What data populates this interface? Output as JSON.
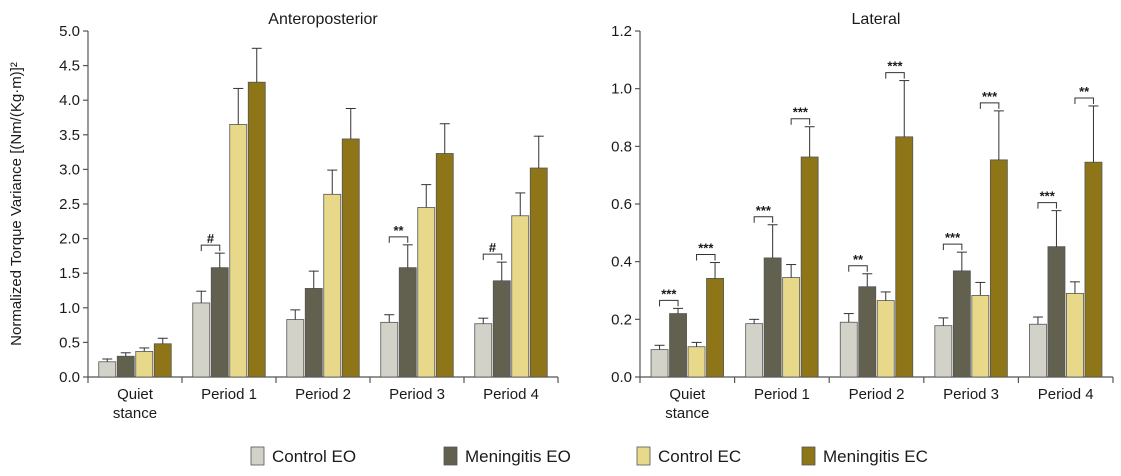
{
  "chart_data": [
    {
      "type": "bar",
      "title": "Anteroposterior",
      "ylabel": "Normalized Torque Variance [(Nm/(Kg·m)]²",
      "xlabel": "",
      "ylim": [
        0,
        5
      ],
      "yticks": [
        "0.0",
        "0.5",
        "1.0",
        "1.5",
        "2.0",
        "2.5",
        "3.0",
        "3.5",
        "4.0",
        "4.5",
        "5.0"
      ],
      "categories": [
        [
          "Quiet",
          "stance"
        ],
        [
          "Period 1"
        ],
        [
          "Period 2"
        ],
        [
          "Period 3"
        ],
        [
          "Period 4"
        ]
      ],
      "series": [
        {
          "name": "Control EO",
          "values": [
            0.22,
            1.07,
            0.83,
            0.79,
            0.77
          ],
          "errors": [
            0.04,
            0.17,
            0.14,
            0.11,
            0.08
          ]
        },
        {
          "name": "Meningitis EO",
          "values": [
            0.3,
            1.58,
            1.28,
            1.58,
            1.39
          ],
          "errors": [
            0.05,
            0.21,
            0.25,
            0.33,
            0.27
          ]
        },
        {
          "name": "Control EC",
          "values": [
            0.37,
            3.65,
            2.64,
            2.45,
            2.33
          ],
          "errors": [
            0.05,
            0.52,
            0.35,
            0.33,
            0.33
          ]
        },
        {
          "name": "Meningitis EC",
          "values": [
            0.48,
            4.26,
            3.44,
            3.23,
            3.02
          ],
          "errors": [
            0.08,
            0.49,
            0.44,
            0.43,
            0.46
          ]
        }
      ],
      "annotations": [
        {
          "category": 1,
          "label": "#"
        },
        {
          "category": 3,
          "label": "**"
        },
        {
          "category": 4,
          "label": "#"
        }
      ]
    },
    {
      "type": "bar",
      "title": "Lateral",
      "ylabel": "",
      "xlabel": "",
      "ylim": [
        0,
        1.2
      ],
      "yticks": [
        "0.0",
        "0.2",
        "0.4",
        "0.6",
        "0.8",
        "1.0",
        "1.2"
      ],
      "categories": [
        [
          "Quiet",
          "stance"
        ],
        [
          "Period 1"
        ],
        [
          "Period 2"
        ],
        [
          "Period 3"
        ],
        [
          "Period 4"
        ]
      ],
      "series": [
        {
          "name": "Control EO",
          "values": [
            0.095,
            0.185,
            0.19,
            0.178,
            0.183
          ],
          "errors": [
            0.015,
            0.015,
            0.03,
            0.027,
            0.025
          ]
        },
        {
          "name": "Meningitis EO",
          "values": [
            0.22,
            0.413,
            0.313,
            0.368,
            0.452
          ],
          "errors": [
            0.018,
            0.115,
            0.045,
            0.065,
            0.125
          ]
        },
        {
          "name": "Control EC",
          "values": [
            0.105,
            0.345,
            0.265,
            0.283,
            0.29
          ],
          "errors": [
            0.015,
            0.045,
            0.03,
            0.045,
            0.04
          ]
        },
        {
          "name": "Meningitis EC",
          "values": [
            0.342,
            0.763,
            0.833,
            0.753,
            0.745
          ],
          "errors": [
            0.055,
            0.105,
            0.195,
            0.17,
            0.195
          ]
        }
      ],
      "annotations": [
        {
          "category": 0,
          "pair": "EO",
          "label": "***"
        },
        {
          "category": 0,
          "pair": "EC",
          "label": "***"
        },
        {
          "category": 1,
          "pair": "EO",
          "label": "***"
        },
        {
          "category": 1,
          "pair": "EC",
          "label": "***"
        },
        {
          "category": 2,
          "pair": "EO",
          "label": "**"
        },
        {
          "category": 2,
          "pair": "EC",
          "label": "***"
        },
        {
          "category": 3,
          "pair": "EO",
          "label": "***"
        },
        {
          "category": 3,
          "pair": "EC",
          "label": "***"
        },
        {
          "category": 4,
          "pair": "EO",
          "label": "***"
        },
        {
          "category": 4,
          "pair": "EC",
          "label": "**"
        }
      ]
    }
  ],
  "colors": {
    "Control EO": "#d3d2c8",
    "Meningitis EO": "#62604f",
    "Control EC": "#e8d98a",
    "Meningitis EC": "#8e7518",
    "axis": "#555555",
    "bar_stroke": "#555555"
  },
  "legend": {
    "placement": "bottom-center",
    "items": [
      "Control EO",
      "Meningitis EO",
      "Control EC",
      "Meningitis EC"
    ]
  }
}
